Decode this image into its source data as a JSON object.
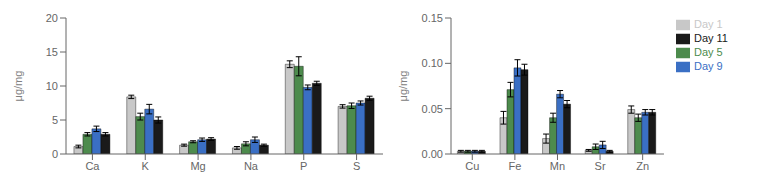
{
  "chart_data": [
    {
      "type": "bar",
      "categories": [
        "Ca",
        "K",
        "Mg",
        "Na",
        "P",
        "S"
      ],
      "series": [
        {
          "name": "Day 1",
          "color": "#c8c8c8",
          "values": [
            1.1,
            8.4,
            1.3,
            0.9,
            13.2,
            7.0
          ],
          "errors": [
            0.2,
            0.25,
            0.15,
            0.2,
            0.5,
            0.25
          ]
        },
        {
          "name": "Day 5",
          "color": "#4d8b4d",
          "values": [
            2.9,
            5.5,
            1.8,
            1.5,
            12.9,
            7.1
          ],
          "errors": [
            0.25,
            0.5,
            0.15,
            0.3,
            1.4,
            0.4
          ]
        },
        {
          "name": "Day 9",
          "color": "#3a6fc4",
          "values": [
            3.7,
            6.6,
            2.1,
            2.1,
            9.8,
            7.5
          ],
          "errors": [
            0.4,
            0.7,
            0.25,
            0.4,
            0.35,
            0.3
          ]
        },
        {
          "name": "Day 11",
          "color": "#1a1a1a",
          "values": [
            2.9,
            5.0,
            2.2,
            1.3,
            10.4,
            8.2
          ],
          "errors": [
            0.25,
            0.45,
            0.2,
            0.15,
            0.3,
            0.3
          ]
        }
      ],
      "ylim": [
        0,
        20
      ],
      "yticks": [
        0,
        5,
        10,
        15,
        20
      ],
      "ylabel": "μg/mg"
    },
    {
      "type": "bar",
      "categories": [
        "Cu",
        "Fe",
        "Mn",
        "Sr",
        "Zn"
      ],
      "series": [
        {
          "name": "Day 1",
          "color": "#c8c8c8",
          "values": [
            0.003,
            0.04,
            0.017,
            0.004,
            0.049
          ],
          "errors": [
            0.001,
            0.007,
            0.005,
            0.001,
            0.004
          ]
        },
        {
          "name": "Day 5",
          "color": "#4d8b4d",
          "values": [
            0.003,
            0.071,
            0.04,
            0.008,
            0.04
          ],
          "errors": [
            0.001,
            0.008,
            0.005,
            0.003,
            0.004
          ]
        },
        {
          "name": "Day 9",
          "color": "#3a6fc4",
          "values": [
            0.003,
            0.095,
            0.066,
            0.01,
            0.046
          ],
          "errors": [
            0.001,
            0.009,
            0.004,
            0.004,
            0.003
          ]
        },
        {
          "name": "Day 11",
          "color": "#1a1a1a",
          "values": [
            0.003,
            0.093,
            0.055,
            0.003,
            0.046
          ],
          "errors": [
            0.001,
            0.006,
            0.004,
            0.001,
            0.003
          ]
        }
      ],
      "ylim": [
        0,
        0.15
      ],
      "yticks": [
        {
          "value": 0,
          "label": "0.00"
        },
        {
          "value": 0.05,
          "label": "0.05"
        },
        {
          "value": 0.1,
          "label": "0.10"
        },
        {
          "value": 0.15,
          "label": "0.15"
        }
      ],
      "ylabel": "μg/mg",
      "legend": "right"
    }
  ]
}
